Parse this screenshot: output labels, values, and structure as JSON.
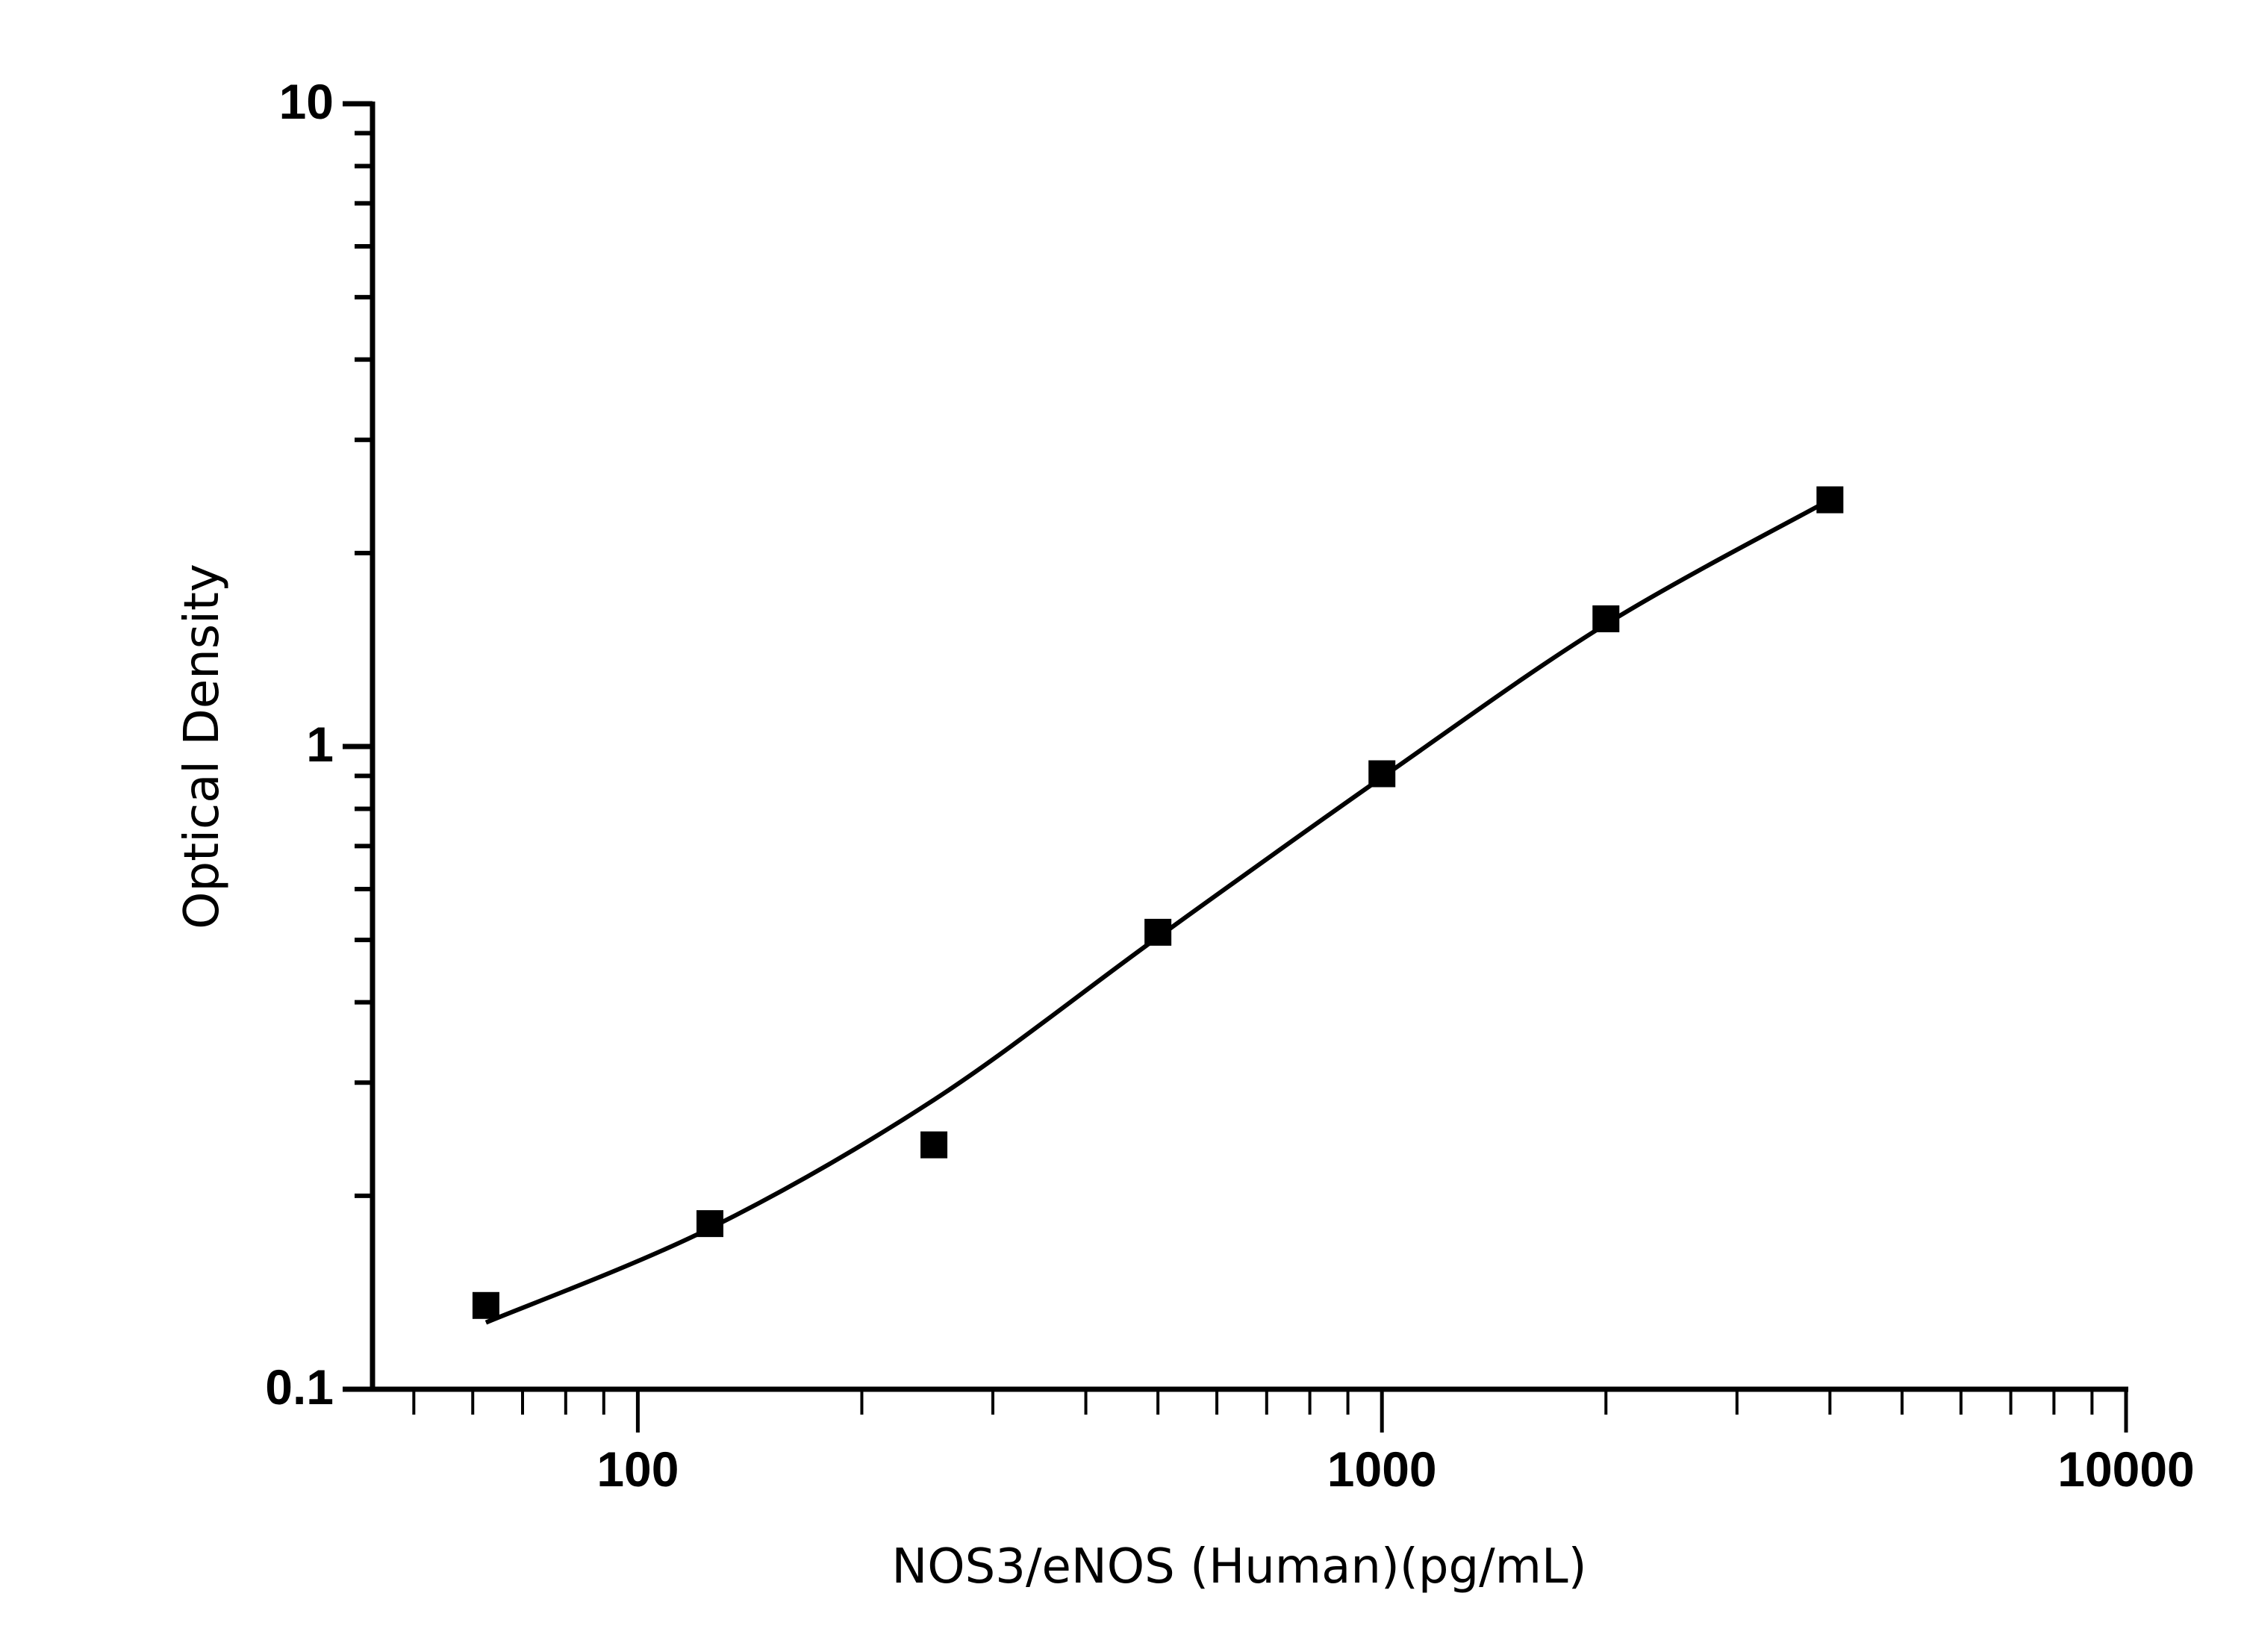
{
  "chart_data": {
    "type": "scatter",
    "title": "",
    "xlabel": "NOS3/eNOS (Human)(pg/mL)",
    "ylabel": "Optical Density",
    "xscale": "log",
    "yscale": "log",
    "xlim": [
      44,
      10000
    ],
    "ylim": [
      0.1,
      10
    ],
    "x_ticks": [
      {
        "value": 100,
        "label": "100"
      },
      {
        "value": 1000,
        "label": "1000"
      },
      {
        "value": 10000,
        "label": "10000"
      }
    ],
    "y_ticks": [
      {
        "value": 0.1,
        "label": "0.1"
      },
      {
        "value": 1,
        "label": "1"
      },
      {
        "value": 10,
        "label": "10"
      }
    ],
    "grid": false,
    "marker": "square",
    "color": "#000000",
    "points": {
      "x": [
        62.5,
        125,
        250,
        500,
        1000,
        2000,
        4000
      ],
      "y": [
        0.135,
        0.181,
        0.24,
        0.514,
        0.907,
        1.58,
        2.42
      ]
    },
    "fit_curve": {
      "x": [
        62.5,
        125,
        250,
        500,
        1000,
        2000,
        4000
      ],
      "y": [
        0.127,
        0.178,
        0.282,
        0.505,
        0.895,
        1.55,
        2.42
      ]
    }
  }
}
